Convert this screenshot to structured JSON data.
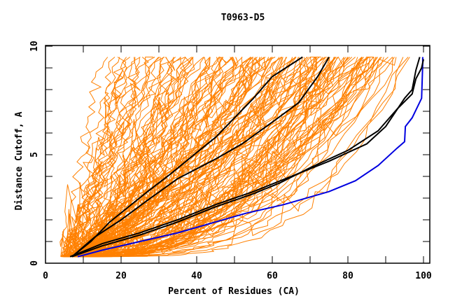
{
  "chart_data": {
    "type": "line",
    "title": "T0963-D5",
    "xlabel": "Percent of Residues (CA)",
    "ylabel": "Distance Cutoff, A",
    "xlim": [
      0,
      100
    ],
    "ylim": [
      0,
      10
    ],
    "x_major_ticks": [
      0,
      20,
      40,
      60,
      80,
      100
    ],
    "x_tick_labels": [
      "0",
      "20",
      "40",
      "60",
      "80",
      "100"
    ],
    "x_minor_tick_step": 10,
    "y_major_ticks": [
      0,
      5,
      10
    ],
    "y_tick_labels": [
      "0",
      "5",
      "10"
    ],
    "y_minor_tick_step": 1,
    "grid": false,
    "legend": "none",
    "colors": {
      "background_models": "#ff8000",
      "highlight_black": "#000000",
      "highlight_blue": "#0000e0",
      "frame": "#000000"
    },
    "background_series_description": "many orange GDT curves for all submitted models (~150 models), spanning from near 0 A at 5-10% up to 9.5 A cutoff",
    "background_series_count": 150,
    "series": [
      {
        "name": "highlight-blue",
        "color": "#0000e0",
        "x": [
          8.5,
          15,
          25,
          35,
          45,
          53,
          63,
          75,
          82,
          88,
          93,
          95,
          95.2,
          97,
          99.5,
          99.8,
          99.8
        ],
        "y": [
          0.3,
          0.6,
          1.0,
          1.4,
          1.9,
          2.3,
          2.7,
          3.3,
          3.8,
          4.5,
          5.3,
          5.6,
          6.3,
          6.7,
          7.6,
          9.2,
          9.5
        ]
      },
      {
        "name": "highlight-black-1",
        "color": "#000000",
        "x": [
          7,
          12,
          17,
          22,
          27,
          33,
          40,
          45,
          50,
          55,
          60,
          68
        ],
        "y": [
          0.3,
          1.0,
          1.9,
          2.6,
          3.3,
          4.1,
          5.1,
          5.8,
          6.7,
          7.6,
          8.6,
          9.5
        ]
      },
      {
        "name": "highlight-black-2",
        "color": "#000000",
        "x": [
          7,
          13,
          20,
          27,
          35,
          45,
          52,
          60,
          67,
          72,
          75
        ],
        "y": [
          0.3,
          1.2,
          2.0,
          2.9,
          3.9,
          4.8,
          5.5,
          6.5,
          7.4,
          8.6,
          9.5
        ]
      },
      {
        "name": "highlight-black-3",
        "color": "#000000",
        "x": [
          6.5,
          15,
          25,
          35,
          45,
          55,
          65,
          75,
          85,
          90,
          95,
          97,
          98,
          99
        ],
        "y": [
          0.3,
          0.9,
          1.4,
          2.0,
          2.7,
          3.3,
          4.0,
          4.7,
          5.5,
          6.3,
          7.6,
          8.0,
          8.9,
          9.5
        ]
      },
      {
        "name": "highlight-black-4",
        "color": "#000000",
        "x": [
          7,
          15,
          25,
          35,
          45,
          55,
          62,
          70,
          80,
          88,
          93,
          97,
          98,
          99.5,
          100
        ],
        "y": [
          0.3,
          0.8,
          1.3,
          1.9,
          2.6,
          3.2,
          3.7,
          4.4,
          5.2,
          6.1,
          7.1,
          7.8,
          8.5,
          9.0,
          9.4
        ]
      }
    ]
  }
}
